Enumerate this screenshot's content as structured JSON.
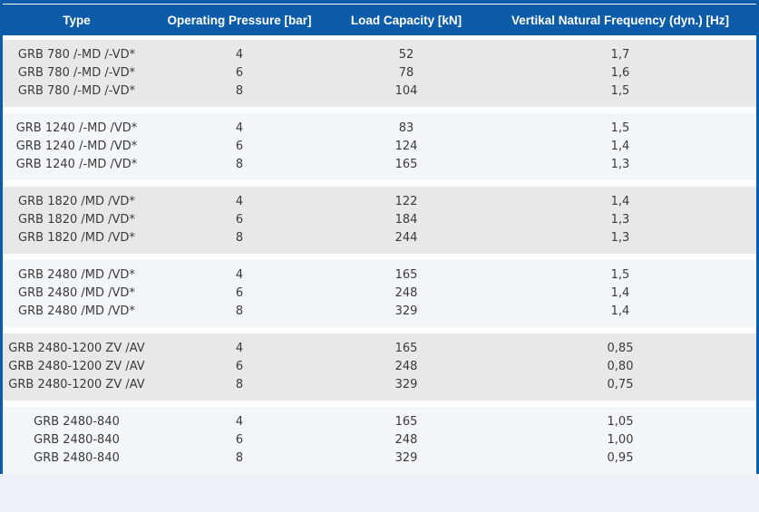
{
  "colors": {
    "accent_blue": "#0d5ca9",
    "band_gray": "#e8e8e9",
    "band_light": "#f3f6f9",
    "page_background": "#edf1f7",
    "header_text": "#ffffff",
    "body_text": "#3a3a3a"
  },
  "table": {
    "columns": [
      {
        "label": "Type"
      },
      {
        "label": "Operating Pressure [bar]"
      },
      {
        "label": "Load Capacity [kN]"
      },
      {
        "label": "Vertikal Natural Frequency (dyn.) [Hz]"
      }
    ],
    "groups": [
      {
        "rows": [
          [
            "GRB 780 /-MD /-VD*",
            "4",
            "52",
            "1,7"
          ],
          [
            "GRB 780 /-MD /-VD*",
            "6",
            "78",
            "1,6"
          ],
          [
            "GRB 780 /-MD /-VD*",
            "8",
            "104",
            "1,5"
          ]
        ]
      },
      {
        "rows": [
          [
            "GRB 1240 /-MD /VD*",
            "4",
            "83",
            "1,5"
          ],
          [
            "GRB 1240 /-MD /VD*",
            "6",
            "124",
            "1,4"
          ],
          [
            "GRB 1240 /-MD /VD*",
            "8",
            "165",
            "1,3"
          ]
        ]
      },
      {
        "rows": [
          [
            "GRB 1820 /MD /VD*",
            "4",
            "122",
            "1,4"
          ],
          [
            "GRB 1820 /MD /VD*",
            "6",
            "184",
            "1,3"
          ],
          [
            "GRB 1820 /MD /VD*",
            "8",
            "244",
            "1,3"
          ]
        ]
      },
      {
        "rows": [
          [
            "GRB 2480 /MD /VD*",
            "4",
            "165",
            "1,5"
          ],
          [
            "GRB 2480 /MD /VD*",
            "6",
            "248",
            "1,4"
          ],
          [
            "GRB 2480 /MD /VD*",
            "8",
            "329",
            "1,4"
          ]
        ]
      },
      {
        "rows": [
          [
            "GRB 2480-1200 ZV /AV",
            "4",
            "165",
            "0,85"
          ],
          [
            "GRB 2480-1200 ZV /AV",
            "6",
            "248",
            "0,80"
          ],
          [
            "GRB 2480-1200 ZV /AV",
            "8",
            "329",
            "0,75"
          ]
        ]
      },
      {
        "rows": [
          [
            "GRB 2480-840",
            "4",
            "165",
            "1,05"
          ],
          [
            "GRB 2480-840",
            "6",
            "248",
            "1,00"
          ],
          [
            "GRB 2480-840",
            "8",
            "329",
            "0,95"
          ]
        ]
      }
    ]
  }
}
